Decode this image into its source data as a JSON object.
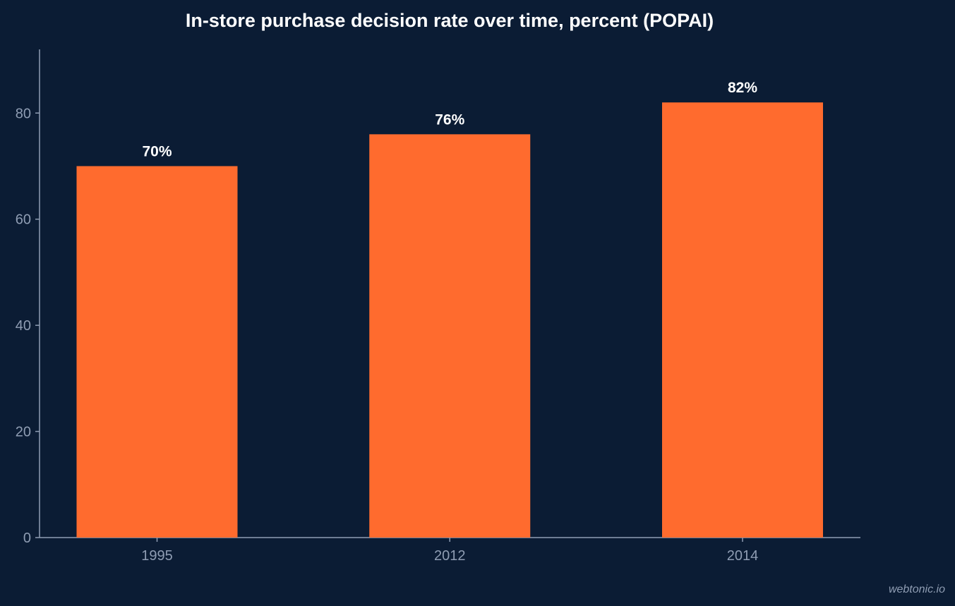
{
  "chart_data": {
    "type": "bar",
    "title": "In-store purchase decision rate over time, percent (POPAI)",
    "categories": [
      "1995",
      "2012",
      "2014"
    ],
    "values": [
      70,
      76,
      82
    ],
    "data_labels": [
      "70%",
      "76%",
      "82%"
    ],
    "xlabel": "",
    "ylabel": "",
    "ylim": [
      0,
      92
    ],
    "yticks": [
      0,
      20,
      40,
      60,
      80
    ],
    "grid": false,
    "legend": "none",
    "colors": {
      "background": "#0b1c34",
      "bar": "#ff6b2e",
      "axis": "#8f9db3",
      "tick_text": "#8f9db3",
      "title_text": "#ffffff",
      "label_text": "#ffffff"
    }
  },
  "watermark": "webtonic.io"
}
